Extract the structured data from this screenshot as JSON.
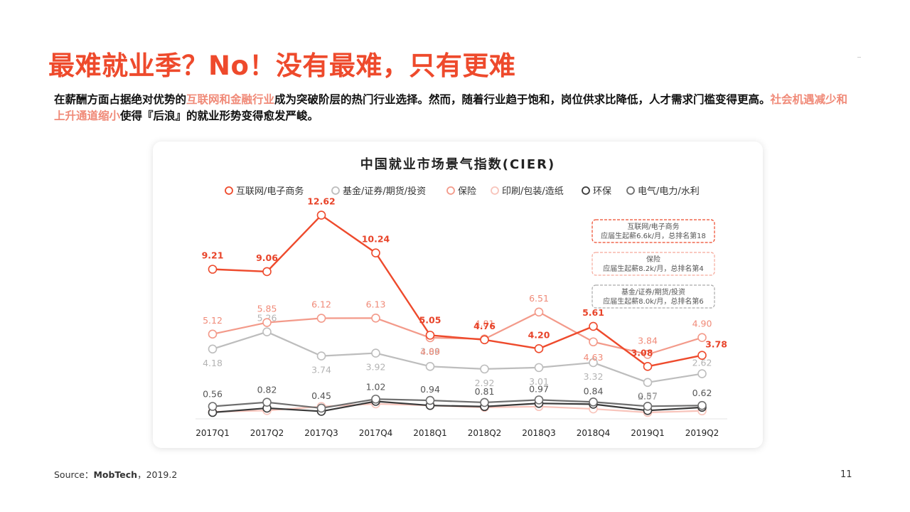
{
  "slide": {
    "title": "最难就业季？No！没有最难，只有更难",
    "desc_part1": "在薪酬方面占据绝对优势的",
    "desc_hl1": "互联网和金融行业",
    "desc_part2": "成为突破阶层的热门行业选择。然而，随着行业趋于饱和，岗位供求比降低，人才需求门槛变得更高。",
    "desc_hl2": "社会机遇减少和上升通道缩小",
    "desc_part3": "使得『后浪』的就业形势变得愈发严峻。",
    "source_prefix": "Source：",
    "source_name": "MobTech",
    "source_suffix": "，2019.2",
    "page_number": "11"
  },
  "chart_data": {
    "type": "line",
    "title": "中国就业市场景气指数(CIER)",
    "categories": [
      "2017Q1",
      "2017Q2",
      "2017Q3",
      "2017Q4",
      "2018Q1",
      "2018Q2",
      "2018Q3",
      "2018Q4",
      "2019Q1",
      "2019Q2"
    ],
    "ylim": [
      0,
      14
    ],
    "grid": false,
    "legend_position": "top",
    "series": [
      {
        "name": "互联网/电子商务",
        "color": "#ee4a2c",
        "values": [
          9.21,
          9.06,
          12.62,
          10.24,
          5.05,
          4.76,
          4.2,
          5.61,
          3.08,
          3.78
        ],
        "labels": [
          "9.21",
          "9.06",
          "12.62",
          "10.24",
          "5.05",
          "4.76",
          "4.20",
          "5.61",
          "3.08",
          "3.78"
        ],
        "label_color": "#e8442a"
      },
      {
        "name": "基金/证券/期货/投资",
        "color": "#bdbdbd",
        "values": [
          4.18,
          5.26,
          3.74,
          3.92,
          3.08,
          2.92,
          3.01,
          3.32,
          2.07,
          2.62
        ],
        "labels": [
          "4.18",
          "5.26",
          "3.74",
          "3.92",
          "3.08",
          "2.92",
          "3.01",
          "3.32",
          "2.07",
          "2.62"
        ],
        "label_color": "#b3b3b3"
      },
      {
        "name": "保险",
        "color": "#f39a8a",
        "values": [
          5.12,
          5.85,
          6.12,
          6.13,
          4.89,
          4.81,
          6.51,
          4.63,
          3.84,
          4.9
        ],
        "labels": [
          "5.12",
          "5.85",
          "6.12",
          "6.13",
          "4.89",
          "4.81",
          "6.51",
          "4.63",
          "3.84",
          "4.90"
        ],
        "label_color": "#f08a78"
      },
      {
        "name": "印刷/包装/造纸",
        "color": "#f8c4bb",
        "values": [
          0.22,
          0.3,
          0.55,
          0.72,
          0.62,
          0.5,
          0.55,
          0.4,
          0.18,
          0.28
        ],
        "labels": null,
        "label_color": "#f8c4bb"
      },
      {
        "name": "环保",
        "color": "#3a3a3a",
        "values": [
          0.18,
          0.45,
          0.25,
          0.88,
          0.62,
          0.55,
          0.75,
          0.7,
          0.3,
          0.5
        ],
        "labels": null,
        "label_color": "#333"
      },
      {
        "name": "电气/电力/水利",
        "color": "#6e6e6e",
        "values": [
          0.56,
          0.82,
          0.45,
          1.02,
          0.94,
          0.81,
          0.97,
          0.84,
          0.57,
          0.62
        ],
        "labels": [
          "0.56",
          "0.82",
          "0.45",
          "1.02",
          "0.94",
          "0.81",
          "0.97",
          "0.84",
          "0.57",
          "0.62"
        ],
        "label_color": "#555"
      }
    ],
    "annotations": [
      {
        "title": "互联网/电子商务",
        "text": "应届生起薪6.6k/月，总排名第18",
        "border": "#ee4a2c"
      },
      {
        "title": "保险",
        "text": "应届生起薪8.2k/月，总排名第4",
        "border": "#f5a99b"
      },
      {
        "title": "基金/证券/期货/投资",
        "text": "应届生起薪8.0k/月，总排名第6",
        "border": "#aaaaaa"
      }
    ]
  }
}
